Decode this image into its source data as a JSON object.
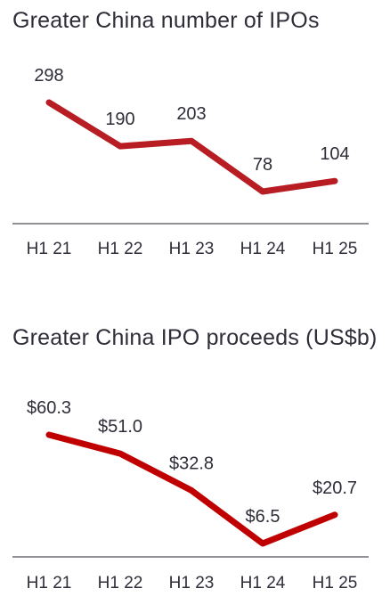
{
  "chart_data": [
    {
      "type": "line",
      "title": "Greater China number of IPOs",
      "categories": [
        "H1 21",
        "H1 22",
        "H1 23",
        "H1 24",
        "H1 25"
      ],
      "values": [
        298,
        190,
        203,
        78,
        104
      ],
      "data_labels": [
        "298",
        "190",
        "203",
        "78",
        "104"
      ],
      "xlabel": "",
      "ylabel": "",
      "grid": false,
      "line_color": "#b81d24"
    },
    {
      "type": "line",
      "title": "Greater China IPO proceeds (US$b)",
      "categories": [
        "H1 21",
        "H1 22",
        "H1 23",
        "H1 24",
        "H1 25"
      ],
      "values": [
        60.3,
        51.0,
        32.8,
        6.5,
        20.7
      ],
      "data_labels": [
        "$60.3",
        "$51.0",
        "$32.8",
        "$6.5",
        "$20.7"
      ],
      "xlabel": "",
      "ylabel": "",
      "grid": false,
      "line_color": "#c00000"
    }
  ]
}
